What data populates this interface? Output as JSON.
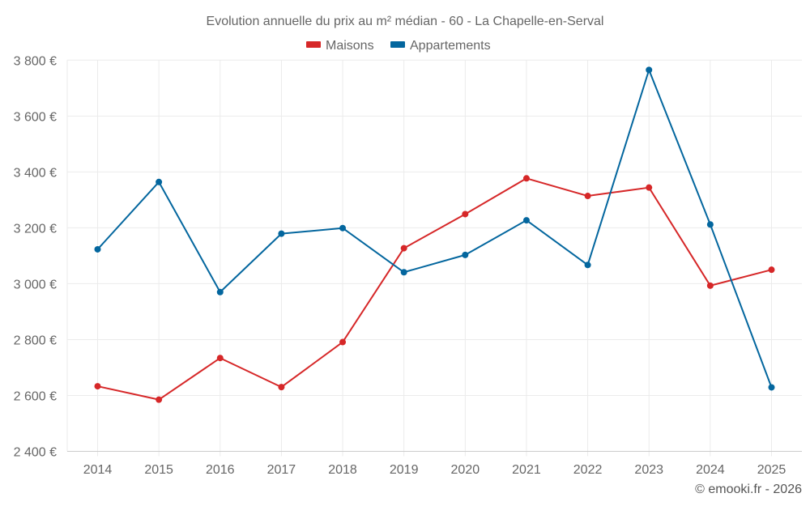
{
  "chart_data": {
    "type": "line",
    "title": "Evolution annuelle du prix au m² médian - 60 - La Chapelle-en-Serval",
    "xlabel": "",
    "ylabel": "",
    "categories": [
      "2014",
      "2015",
      "2016",
      "2017",
      "2018",
      "2019",
      "2020",
      "2021",
      "2022",
      "2023",
      "2024",
      "2025"
    ],
    "ylim": [
      2400,
      3800
    ],
    "yticks": [
      2400,
      2600,
      2800,
      3000,
      3200,
      3400,
      3600,
      3800
    ],
    "ytick_labels": [
      "2 400 €",
      "2 600 €",
      "2 800 €",
      "3 000 €",
      "3 200 €",
      "3 400 €",
      "3 600 €",
      "3 800 €"
    ],
    "grid": true,
    "legend_position": "top-center",
    "series": [
      {
        "name": "Maisons",
        "color": "#d62728",
        "values": [
          2633,
          2585,
          2734,
          2630,
          2791,
          3127,
          3249,
          3377,
          3314,
          3344,
          2993,
          3050
        ]
      },
      {
        "name": "Appartements",
        "color": "#03669e",
        "values": [
          3123,
          3364,
          2970,
          3179,
          3199,
          3041,
          3103,
          3227,
          3067,
          3765,
          3212,
          2629
        ]
      }
    ],
    "credit": "© emooki.fr - 2026"
  }
}
